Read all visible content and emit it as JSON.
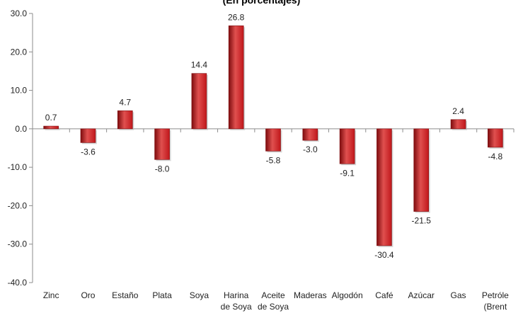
{
  "chart_data": {
    "type": "bar",
    "subtitle": "(En porcentajes)",
    "categories": [
      [
        "Zinc"
      ],
      [
        "Oro"
      ],
      [
        "Estaño"
      ],
      [
        "Plata"
      ],
      [
        "Soya"
      ],
      [
        "Harina",
        "de Soya"
      ],
      [
        "Aceite",
        "de Soya"
      ],
      [
        "Maderas"
      ],
      [
        "Algodón"
      ],
      [
        "Café"
      ],
      [
        "Azúcar"
      ],
      [
        "Gas"
      ],
      [
        "Petróle",
        "(Brent"
      ]
    ],
    "values": [
      0.7,
      -3.6,
      4.7,
      -8.0,
      14.4,
      26.8,
      -5.8,
      -3.0,
      -9.1,
      -30.4,
      -21.5,
      2.4,
      -4.8
    ],
    "value_labels": [
      "0.7",
      "-3.6",
      "4.7",
      "-8.0",
      "14.4",
      "26.8",
      "-5.8",
      "-3.0",
      "-9.1",
      "-30.4",
      "-21.5",
      "2.4",
      "-4.8"
    ],
    "ylim": [
      -40,
      30
    ],
    "y_ticks": [
      30,
      20,
      10,
      0,
      -10,
      -20,
      -30,
      -40
    ],
    "y_tick_labels": [
      "30.0",
      "20.0",
      "10.0",
      "0.0",
      "-10.0",
      "-20.0",
      "-30.0",
      "-40.0"
    ],
    "grid": false,
    "bar_color": "#c0171b",
    "bar_color_light": "#e0504f",
    "bar_color_dark": "#7e0c0e",
    "axis_color": "#8c8c8c"
  }
}
